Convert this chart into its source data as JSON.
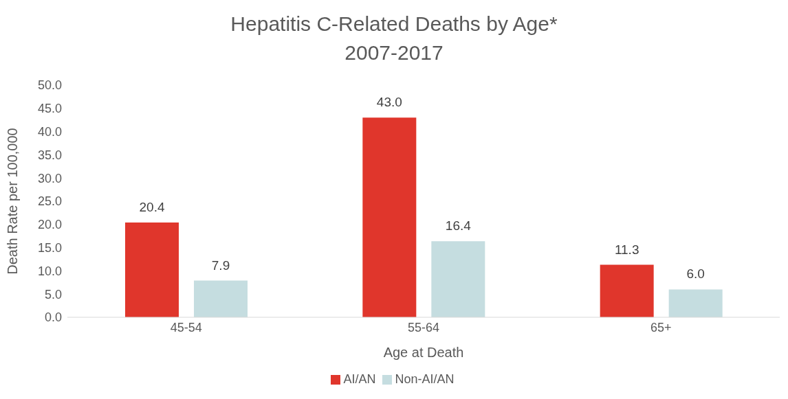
{
  "chart_data": {
    "type": "bar",
    "title": "Hepatitis C-Related Deaths by Age*",
    "subtitle": "2007-2017",
    "xlabel": "Age at Death",
    "ylabel": "Death Rate per 100,000",
    "categories": [
      "45-54",
      "55-64",
      "65+"
    ],
    "series": [
      {
        "name": "AI/AN",
        "color": "#e0362c",
        "values": [
          20.4,
          43.0,
          11.3
        ],
        "value_labels": [
          "20.4",
          "43.0",
          "11.3"
        ]
      },
      {
        "name": "Non-AI/AN",
        "color": "#c5dde0",
        "values": [
          7.9,
          16.4,
          6.0
        ],
        "value_labels": [
          "7.9",
          "16.4",
          "6.0"
        ]
      }
    ],
    "ylim": [
      0,
      50
    ],
    "yticks": [
      {
        "value": 0,
        "label": "0.0"
      },
      {
        "value": 5,
        "label": "5.0"
      },
      {
        "value": 10,
        "label": "10.0"
      },
      {
        "value": 15,
        "label": "15.0"
      },
      {
        "value": 20,
        "label": "20.0"
      },
      {
        "value": 25,
        "label": "25.0"
      },
      {
        "value": 30,
        "label": "30.0"
      },
      {
        "value": 35,
        "label": "35.0"
      },
      {
        "value": 40,
        "label": "40.0"
      },
      {
        "value": 45,
        "label": "45.0"
      },
      {
        "value": 50,
        "label": "50.0"
      }
    ],
    "grid": false,
    "legend": "bottom"
  }
}
